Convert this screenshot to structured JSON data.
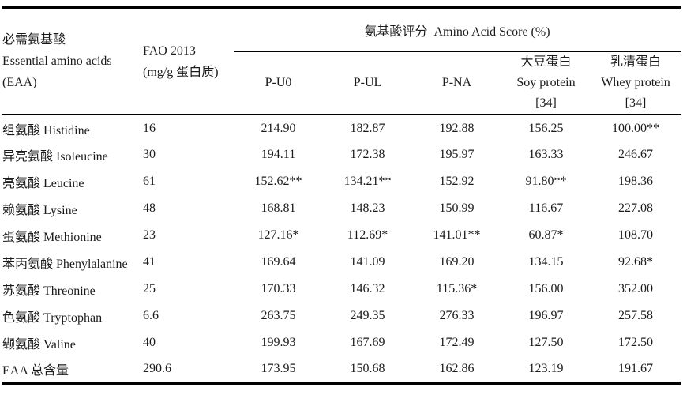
{
  "colors": {
    "background": "#ffffff",
    "text": "#1b1b1b",
    "rule": "#000000"
  },
  "table": {
    "header": {
      "eaa": {
        "line1": "必需氨基酸",
        "line2": "Essential amino acids",
        "line3": "(EAA)"
      },
      "fao": {
        "line1": "FAO 2013",
        "line2": "(mg/g 蛋白质)"
      },
      "score_spanner": "氨基酸评分  Amino Acid Score (%)",
      "subcolumns": [
        {
          "line1": "P-U0"
        },
        {
          "line1": "P-UL"
        },
        {
          "line1": "P-NA"
        },
        {
          "line1": "大豆蛋白",
          "line2": "Soy protein",
          "line3": "[34]"
        },
        {
          "line1": "乳清蛋白",
          "line2": "Whey protein",
          "line3": "[34]"
        }
      ]
    },
    "rows": [
      {
        "name": "组氨酸 Histidine",
        "fao": "16",
        "scores": [
          "214.90",
          "182.87",
          "192.88",
          "156.25",
          "100.00**"
        ]
      },
      {
        "name": "异亮氨酸 Isoleucine",
        "fao": "30",
        "scores": [
          "194.11",
          "172.38",
          "195.97",
          "163.33",
          "246.67"
        ]
      },
      {
        "name": "亮氨酸 Leucine",
        "fao": "61",
        "scores": [
          "152.62**",
          "134.21**",
          "152.92",
          "91.80**",
          "198.36"
        ]
      },
      {
        "name": "赖氨酸 Lysine",
        "fao": "48",
        "scores": [
          "168.81",
          "148.23",
          "150.99",
          "116.67",
          "227.08"
        ]
      },
      {
        "name": "蛋氨酸 Methionine",
        "fao": "23",
        "scores": [
          "127.16*",
          "112.69*",
          "141.01**",
          "60.87*",
          "108.70"
        ]
      },
      {
        "name": "苯丙氨酸 Phenylalanine",
        "fao": "41",
        "scores": [
          "169.64",
          "141.09",
          "169.20",
          "134.15",
          "92.68*"
        ]
      },
      {
        "name": "苏氨酸 Threonine",
        "fao": "25",
        "scores": [
          "170.33",
          "146.32",
          "115.36*",
          "156.00",
          "352.00"
        ]
      },
      {
        "name": "色氨酸 Tryptophan",
        "fao": "6.6",
        "scores": [
          "263.75",
          "249.35",
          "276.33",
          "196.97",
          "257.58"
        ]
      },
      {
        "name": "缬氨酸 Valine",
        "fao": "40",
        "scores": [
          "199.93",
          "167.69",
          "172.49",
          "127.50",
          "172.50"
        ]
      },
      {
        "name": "EAA 总含量",
        "fao": "290.6",
        "scores": [
          "173.95",
          "150.68",
          "162.86",
          "123.19",
          "191.67"
        ]
      }
    ]
  }
}
